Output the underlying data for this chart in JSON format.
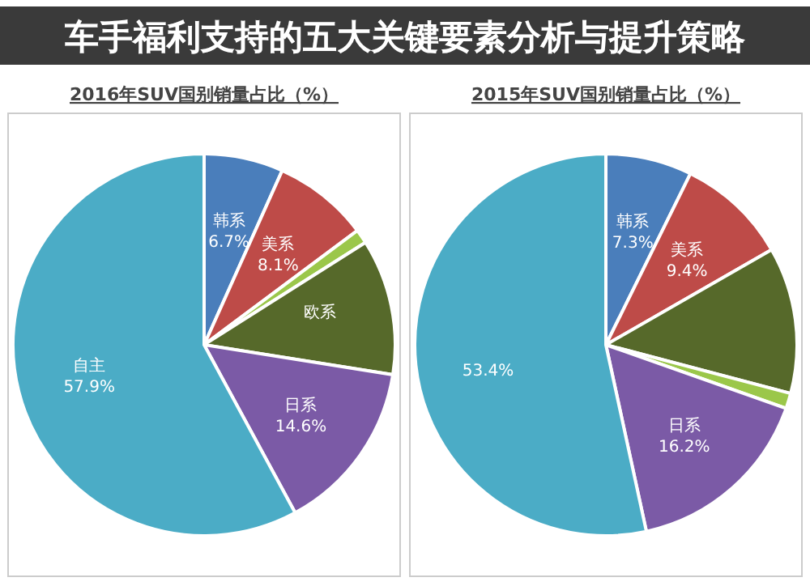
{
  "chart_data": [
    {
      "type": "other",
      "title": "车手福利支持的五大关键要素分析与提升策略"
    },
    {
      "type": "pie",
      "title": "2016年SUV国别销量占比（%）",
      "categories": [
        "韩系",
        "美系",
        null,
        "欧系",
        "日系",
        "自主"
      ],
      "values": [
        6.7,
        8.1,
        1.2,
        11.5,
        14.6,
        57.9
      ],
      "value_labels": [
        "6.7%",
        "8.1%",
        null,
        null,
        "14.6%",
        "57.9%"
      ],
      "colors": [
        "#4a7ebb",
        "#be4b48",
        "#9bc74a",
        "#56692a",
        "#7b5aa6",
        "#4bacc6"
      ]
    },
    {
      "type": "pie",
      "title": "2015年SUV国别销量占比（%）",
      "categories": [
        "韩系",
        "美系",
        null,
        null,
        "日系",
        null
      ],
      "values": [
        7.3,
        9.4,
        12.4,
        1.3,
        16.2,
        53.4
      ],
      "value_labels": [
        "7.3%",
        "9.4%",
        null,
        null,
        "16.2%",
        "53.4%"
      ],
      "colors": [
        "#4a7ebb",
        "#be4b48",
        "#56692a",
        "#9bc74a",
        "#7b5aa6",
        "#4bacc6"
      ]
    }
  ]
}
